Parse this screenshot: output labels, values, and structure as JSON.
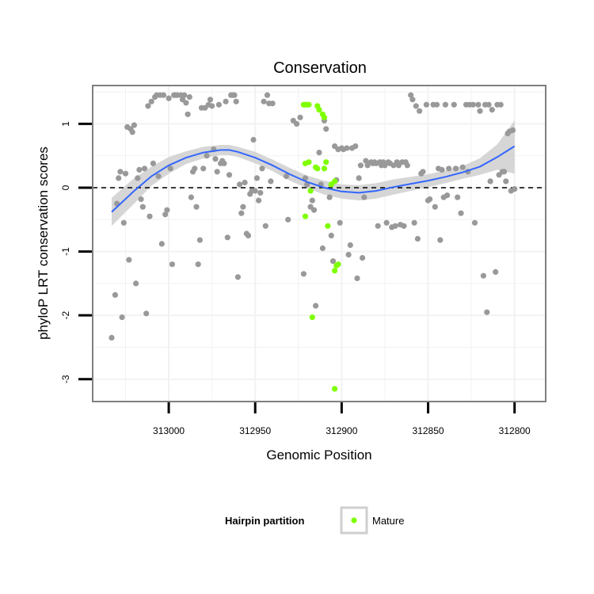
{
  "chart_data": {
    "type": "scatter",
    "title": "Conservation",
    "xlabel": "Genomic Position",
    "ylabel": "phyloP LRT conservation scores",
    "x_reversed": true,
    "xlim": [
      312782,
      313044
    ],
    "ylim": [
      -3.35,
      1.6
    ],
    "x_ticks": [
      313000,
      312950,
      312900,
      312850,
      312800
    ],
    "y_ticks": [
      1,
      0,
      -1,
      -2,
      -3
    ],
    "reference_line": {
      "y": 0,
      "style": "dashed"
    },
    "grid": true,
    "legend": {
      "title": "Hairpin partition",
      "position": "bottom",
      "entries": [
        {
          "label": "Mature",
          "color": "#7fff00"
        }
      ]
    },
    "colors": {
      "points": "#999999",
      "mature": "#7fff00",
      "smooth": "#3366ff",
      "band": "#cfcfcf",
      "panel_border": "#7f7f7f",
      "grid": "#f2f2f2"
    },
    "series": [
      {
        "role": "other",
        "points": [
          [
            313033,
            -2.35
          ],
          [
            313031,
            -1.68
          ],
          [
            313030,
            -0.25
          ],
          [
            313029,
            0.15
          ],
          [
            313028,
            0.25
          ],
          [
            313027,
            -2.03
          ],
          [
            313026,
            -0.55
          ],
          [
            313025,
            0.22
          ],
          [
            313024,
            0.95
          ],
          [
            313023,
            -1.13
          ],
          [
            313022,
            0.92
          ],
          [
            313021,
            0.87
          ],
          [
            313020,
            0.98
          ],
          [
            313019,
            -1.5
          ],
          [
            313018,
            0.15
          ],
          [
            313017,
            0.28
          ],
          [
            313016,
            -0.18
          ],
          [
            313015,
            -0.3
          ],
          [
            313014,
            0.3
          ],
          [
            313013,
            -1.97
          ],
          [
            313012,
            1.28
          ],
          [
            313011,
            -0.45
          ],
          [
            313010,
            1.35
          ],
          [
            313009,
            0.38
          ],
          [
            313008,
            1.42
          ],
          [
            313007,
            1.45
          ],
          [
            313006,
            0.18
          ],
          [
            313005,
            1.45
          ],
          [
            313004,
            -0.88
          ],
          [
            313003,
            1.45
          ],
          [
            313002,
            -0.42
          ],
          [
            313001,
            -0.35
          ],
          [
            313000,
            1.4
          ],
          [
            312999,
            0.3
          ],
          [
            312998,
            -1.2
          ],
          [
            312997,
            1.45
          ],
          [
            312996,
            1.45
          ],
          [
            312995,
            1.45
          ],
          [
            312993,
            1.45
          ],
          [
            312992,
            1.38
          ],
          [
            312991,
            1.45
          ],
          [
            312990,
            1.33
          ],
          [
            312989,
            1.15
          ],
          [
            312988,
            1.42
          ],
          [
            312987,
            -0.15
          ],
          [
            312986,
            0.25
          ],
          [
            312985,
            0.3
          ],
          [
            312984,
            -0.3
          ],
          [
            312983,
            -1.2
          ],
          [
            312982,
            -0.82
          ],
          [
            312981,
            1.25
          ],
          [
            312980,
            0.3
          ],
          [
            312979,
            1.25
          ],
          [
            312978,
            0.5
          ],
          [
            312977,
            1.3
          ],
          [
            312976,
            1.38
          ],
          [
            312975,
            1.28
          ],
          [
            312974,
            0.6
          ],
          [
            312973,
            0.45
          ],
          [
            312972,
            0.25
          ],
          [
            312971,
            1.3
          ],
          [
            312970,
            0.38
          ],
          [
            312969,
            0.42
          ],
          [
            312968,
            0.38
          ],
          [
            312967,
            1.35
          ],
          [
            312966,
            -0.78
          ],
          [
            312965,
            0.2
          ],
          [
            312964,
            1.45
          ],
          [
            312963,
            1.45
          ],
          [
            312962,
            1.45
          ],
          [
            312961,
            1.35
          ],
          [
            312960,
            -1.4
          ],
          [
            312959,
            0.05
          ],
          [
            312958,
            -0.4
          ],
          [
            312957,
            -0.3
          ],
          [
            312956,
            0.08
          ],
          [
            312955,
            -0.72
          ],
          [
            312954,
            -0.75
          ],
          [
            312953,
            -0.1
          ],
          [
            312952,
            -0.05
          ],
          [
            312951,
            0.75
          ],
          [
            312950,
            -0.05
          ],
          [
            312949,
            0.15
          ],
          [
            312948,
            -0.2
          ],
          [
            312947,
            -0.08
          ],
          [
            312946,
            0.3
          ],
          [
            312945,
            1.35
          ],
          [
            312944,
            -0.6
          ],
          [
            312943,
            1.45
          ],
          [
            312942,
            1.32
          ],
          [
            312941,
            0.1
          ],
          [
            312940,
            1.32
          ],
          [
            312932,
            0.18
          ],
          [
            312931,
            -0.5
          ],
          [
            312928,
            1.05
          ],
          [
            312926,
            1.0
          ],
          [
            312924,
            1.1
          ],
          [
            312922,
            -1.35
          ],
          [
            312921,
            0.15
          ],
          [
            312920,
            0.05
          ],
          [
            312918,
            -0.3
          ],
          [
            312917,
            -0.2
          ],
          [
            312916,
            -0.35
          ],
          [
            312915,
            -1.85
          ],
          [
            312913,
            0.55
          ],
          [
            312912,
            0.05
          ],
          [
            312911,
            -0.95
          ],
          [
            312910,
            1.05
          ],
          [
            312909,
            0.92
          ],
          [
            312907,
            -0.15
          ],
          [
            312906,
            -0.75
          ],
          [
            312905,
            -1.15
          ],
          [
            312904,
            0.65
          ],
          [
            312903,
            0.12
          ],
          [
            312902,
            0.6
          ],
          [
            312901,
            -0.55
          ],
          [
            312900,
            0.62
          ],
          [
            312899,
            0.6
          ],
          [
            312897,
            0.62
          ],
          [
            312896,
            -1.05
          ],
          [
            312895,
            -0.9
          ],
          [
            312894,
            0.62
          ],
          [
            312892,
            0.65
          ],
          [
            312891,
            -1.42
          ],
          [
            312890,
            0.15
          ],
          [
            312889,
            0.35
          ],
          [
            312888,
            -1.1
          ],
          [
            312887,
            -0.15
          ],
          [
            312886,
            0.42
          ],
          [
            312885,
            0.35
          ],
          [
            312883,
            0.4
          ],
          [
            312882,
            0.38
          ],
          [
            312881,
            0.4
          ],
          [
            312880,
            0.38
          ],
          [
            312879,
            -0.6
          ],
          [
            312878,
            0.4
          ],
          [
            312877,
            0.35
          ],
          [
            312876,
            0.4
          ],
          [
            312875,
            0.35
          ],
          [
            312874,
            -0.55
          ],
          [
            312873,
            0.4
          ],
          [
            312872,
            0.38
          ],
          [
            312871,
            -0.62
          ],
          [
            312870,
            0.35
          ],
          [
            312869,
            -0.6
          ],
          [
            312868,
            0.4
          ],
          [
            312867,
            0.35
          ],
          [
            312866,
            -0.58
          ],
          [
            312865,
            0.4
          ],
          [
            312864,
            -0.6
          ],
          [
            312863,
            0.4
          ],
          [
            312862,
            0.35
          ],
          [
            312860,
            1.45
          ],
          [
            312859,
            1.38
          ],
          [
            312858,
            -0.55
          ],
          [
            312857,
            1.28
          ],
          [
            312856,
            -0.8
          ],
          [
            312855,
            1.2
          ],
          [
            312854,
            0.22
          ],
          [
            312853,
            0.25
          ],
          [
            312851,
            1.3
          ],
          [
            312850,
            -0.2
          ],
          [
            312849,
            -0.18
          ],
          [
            312847,
            1.3
          ],
          [
            312846,
            -0.3
          ],
          [
            312845,
            1.3
          ],
          [
            312844,
            0.3
          ],
          [
            312843,
            -0.82
          ],
          [
            312842,
            0.28
          ],
          [
            312841,
            -0.15
          ],
          [
            312840,
            1.3
          ],
          [
            312839,
            -0.12
          ],
          [
            312838,
            0.3
          ],
          [
            312835,
            1.3
          ],
          [
            312834,
            0.3
          ],
          [
            312833,
            -0.15
          ],
          [
            312831,
            -0.4
          ],
          [
            312830,
            0.32
          ],
          [
            312828,
            1.3
          ],
          [
            312827,
            0.25
          ],
          [
            312826,
            1.3
          ],
          [
            312824,
            1.3
          ],
          [
            312823,
            -0.55
          ],
          [
            312821,
            1.3
          ],
          [
            312820,
            1.2
          ],
          [
            312818,
            -1.38
          ],
          [
            312817,
            1.3
          ],
          [
            312816,
            -1.95
          ],
          [
            312815,
            1.3
          ],
          [
            312814,
            0.1
          ],
          [
            312813,
            1.22
          ],
          [
            312811,
            -1.32
          ],
          [
            312810,
            1.3
          ],
          [
            312809,
            0.2
          ],
          [
            312808,
            1.3
          ],
          [
            312807,
            0.25
          ],
          [
            312806,
            0.25
          ],
          [
            312805,
            0.1
          ],
          [
            312804,
            0.85
          ],
          [
            312803,
            0.88
          ],
          [
            312802,
            -0.05
          ],
          [
            312801,
            0.9
          ],
          [
            312800,
            -0.02
          ]
        ]
      },
      {
        "name": "Mature",
        "role": "mature",
        "points": [
          [
            312922,
            1.3
          ],
          [
            312921,
            1.3
          ],
          [
            312920,
            1.3
          ],
          [
            312919,
            1.3
          ],
          [
            312914,
            1.28
          ],
          [
            312913,
            1.22
          ],
          [
            312911,
            1.15
          ],
          [
            312910,
            1.1
          ],
          [
            312921,
            0.38
          ],
          [
            312919,
            0.4
          ],
          [
            312915,
            0.32
          ],
          [
            312914,
            0.3
          ],
          [
            312910,
            0.3
          ],
          [
            312909,
            0.4
          ],
          [
            312906,
            0.05
          ],
          [
            312904,
            0.1
          ],
          [
            312918,
            -0.05
          ],
          [
            312921,
            -0.45
          ],
          [
            312908,
            -0.6
          ],
          [
            312902,
            -1.2
          ],
          [
            312903,
            -1.22
          ],
          [
            312904,
            -1.3
          ],
          [
            312917,
            -2.03
          ],
          [
            312904,
            -3.15
          ]
        ]
      }
    ],
    "smooth": {
      "method": "loess",
      "x": [
        313033,
        313020,
        313010,
        313000,
        312990,
        312980,
        312970,
        312965,
        312960,
        312950,
        312940,
        312930,
        312920,
        312910,
        312900,
        312890,
        312880,
        312870,
        312860,
        312850,
        312840,
        312830,
        312820,
        312810,
        312800
      ],
      "y": [
        -0.38,
        -0.05,
        0.18,
        0.35,
        0.47,
        0.55,
        0.59,
        0.59,
        0.56,
        0.47,
        0.35,
        0.21,
        0.09,
        0.0,
        -0.06,
        -0.08,
        -0.05,
        0.01,
        0.06,
        0.11,
        0.17,
        0.24,
        0.33,
        0.48,
        0.65
      ],
      "lower": [
        -0.6,
        -0.25,
        0.03,
        0.22,
        0.37,
        0.46,
        0.51,
        0.51,
        0.48,
        0.38,
        0.26,
        0.11,
        -0.01,
        -0.11,
        -0.17,
        -0.2,
        -0.17,
        -0.11,
        -0.05,
        0.01,
        0.07,
        0.14,
        0.2,
        0.28,
        0.22
      ],
      "upper": [
        -0.16,
        0.15,
        0.33,
        0.48,
        0.57,
        0.64,
        0.67,
        0.67,
        0.64,
        0.56,
        0.44,
        0.31,
        0.19,
        0.11,
        0.05,
        0.04,
        0.07,
        0.13,
        0.17,
        0.21,
        0.27,
        0.34,
        0.46,
        0.68,
        1.05
      ]
    }
  }
}
